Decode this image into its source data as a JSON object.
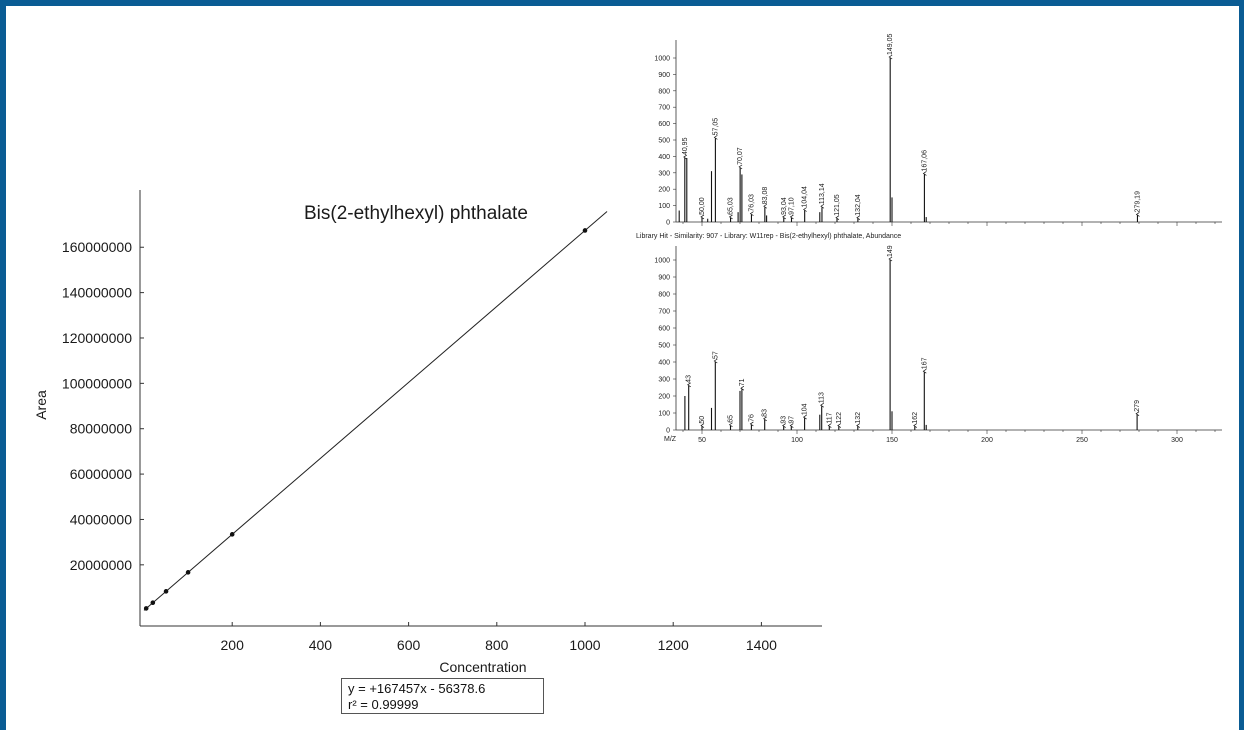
{
  "chart_data": [
    {
      "type": "scatter",
      "title": "Bis(2-ethylhexyl) phthalate",
      "xlabel": "Concentration",
      "ylabel": "Area",
      "xlim": [
        0,
        1500
      ],
      "ylim": [
        -8000000,
        175000000
      ],
      "x_ticks": [
        200,
        400,
        600,
        800,
        1000,
        1200,
        1400
      ],
      "y_ticks": [
        20000000,
        40000000,
        60000000,
        80000000,
        100000000,
        120000000,
        140000000,
        160000000
      ],
      "x_tick_labels": [
        "200",
        "400",
        "600",
        "800",
        "1000",
        "1200",
        "1400"
      ],
      "y_tick_labels": [
        "20000000",
        "40000000",
        "60000000",
        "80000000",
        "100000000",
        "120000000",
        "140000000",
        "160000000"
      ],
      "points": [
        {
          "x": 5,
          "y": 780000
        },
        {
          "x": 20,
          "y": 3290000
        },
        {
          "x": 50,
          "y": 8320000
        },
        {
          "x": 100,
          "y": 16690000
        },
        {
          "x": 200,
          "y": 33440000
        },
        {
          "x": 1000,
          "y": 167400000
        }
      ],
      "fit": {
        "slope": 167457,
        "intercept": -56378.6,
        "x_range": [
          0,
          1050
        ]
      },
      "equation": "y = +167457x - 56378.6",
      "r_squared": "r² = 0.99999",
      "grid": false
    },
    {
      "type": "bar",
      "subtype": "mass-spectrum",
      "xlim": [
        30,
        325
      ],
      "ylim": [
        0,
        1100
      ],
      "y_ticks": [
        0,
        100,
        200,
        300,
        400,
        500,
        600,
        700,
        800,
        900,
        1000
      ],
      "peaks": [
        {
          "mz": 38,
          "i": 70
        },
        {
          "mz": 40.95,
          "i": 390,
          "label": "40,95"
        },
        {
          "mz": 42,
          "i": 390
        },
        {
          "mz": 50,
          "i": 25,
          "label": "50,00"
        },
        {
          "mz": 53,
          "i": 20
        },
        {
          "mz": 55,
          "i": 310
        },
        {
          "mz": 57.05,
          "i": 510,
          "label": "57,05"
        },
        {
          "mz": 65.03,
          "i": 25,
          "label": "65,03"
        },
        {
          "mz": 69,
          "i": 60
        },
        {
          "mz": 70.07,
          "i": 330,
          "label": "70,07"
        },
        {
          "mz": 71,
          "i": 290
        },
        {
          "mz": 76.03,
          "i": 45,
          "label": "76,03"
        },
        {
          "mz": 83.08,
          "i": 90,
          "label": "83,08"
        },
        {
          "mz": 84,
          "i": 40
        },
        {
          "mz": 93.04,
          "i": 25,
          "label": "93,04"
        },
        {
          "mz": 97.1,
          "i": 25,
          "label": "97,10"
        },
        {
          "mz": 104.04,
          "i": 70,
          "label": "104,04"
        },
        {
          "mz": 112,
          "i": 60
        },
        {
          "mz": 113.14,
          "i": 90,
          "label": "113,14"
        },
        {
          "mz": 121.05,
          "i": 20,
          "label": "121,05"
        },
        {
          "mz": 132.04,
          "i": 20,
          "label": "132,04"
        },
        {
          "mz": 149.05,
          "i": 1000,
          "label": "149,05"
        },
        {
          "mz": 150,
          "i": 150
        },
        {
          "mz": 167.06,
          "i": 290,
          "label": "167,06"
        },
        {
          "mz": 168,
          "i": 30
        },
        {
          "mz": 279.19,
          "i": 40,
          "label": "279,19"
        }
      ]
    },
    {
      "type": "bar",
      "subtype": "mass-spectrum",
      "title": "Library Hit - Similarity: 907 - Library: W11rep - Bis(2-ethylhexyl) phthalate, Abundance",
      "xlabel": "M/Z",
      "xlim": [
        30,
        325
      ],
      "ylim": [
        0,
        1100
      ],
      "x_ticks": [
        50,
        100,
        150,
        200,
        250,
        300
      ],
      "y_ticks": [
        0,
        100,
        200,
        300,
        400,
        500,
        600,
        700,
        800,
        900,
        1000
      ],
      "peaks": [
        {
          "mz": 41,
          "i": 200
        },
        {
          "mz": 43,
          "i": 260,
          "label": "43"
        },
        {
          "mz": 50,
          "i": 20,
          "label": "50"
        },
        {
          "mz": 55,
          "i": 130
        },
        {
          "mz": 57,
          "i": 400,
          "label": "57"
        },
        {
          "mz": 65,
          "i": 25,
          "label": "65"
        },
        {
          "mz": 70,
          "i": 230
        },
        {
          "mz": 71,
          "i": 240,
          "label": "71"
        },
        {
          "mz": 76,
          "i": 30,
          "label": "76"
        },
        {
          "mz": 83,
          "i": 60,
          "label": "83"
        },
        {
          "mz": 93,
          "i": 20,
          "label": "93"
        },
        {
          "mz": 97,
          "i": 20,
          "label": "97"
        },
        {
          "mz": 104,
          "i": 70,
          "label": "104"
        },
        {
          "mz": 112,
          "i": 90
        },
        {
          "mz": 113,
          "i": 140,
          "label": "113"
        },
        {
          "mz": 117,
          "i": 20,
          "label": "117"
        },
        {
          "mz": 122,
          "i": 20,
          "label": "122"
        },
        {
          "mz": 132,
          "i": 20,
          "label": "132"
        },
        {
          "mz": 149,
          "i": 1000,
          "label": "149"
        },
        {
          "mz": 150,
          "i": 110
        },
        {
          "mz": 162,
          "i": 20,
          "label": "162"
        },
        {
          "mz": 167,
          "i": 340,
          "label": "167"
        },
        {
          "mz": 168,
          "i": 30
        },
        {
          "mz": 279,
          "i": 90,
          "label": "279"
        }
      ]
    }
  ]
}
